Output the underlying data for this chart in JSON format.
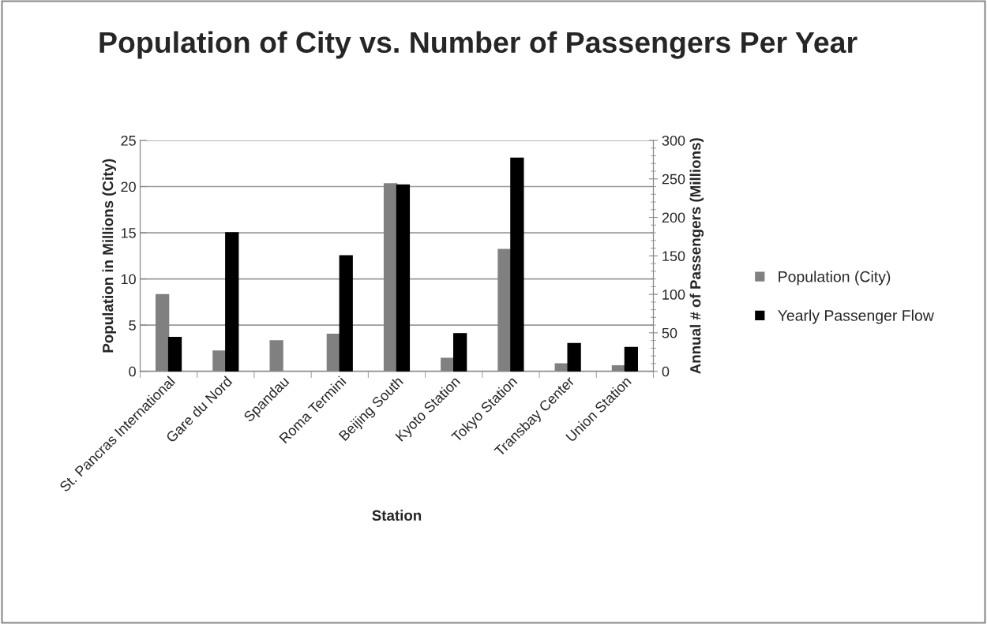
{
  "chart_data": {
    "type": "bar",
    "title": "Population of City vs. Number of Passengers Per Year",
    "xlabel": "Station",
    "ylabel": "Population in Millions (City)",
    "y2label": "Annual # of Passengers (Millions)",
    "categories": [
      "St. Pancras International",
      "Gare du Nord",
      "Spandau",
      "Roma Termini",
      "Beijing South",
      "Kyoto Station",
      "Tokyo Station",
      "Transbay Center",
      "Union Station"
    ],
    "series": [
      {
        "name": "Population (City)",
        "color": "#808080",
        "values": [
          8.3,
          2.2,
          3.3,
          4.0,
          20.3,
          1.4,
          13.2,
          0.8,
          0.6
        ]
      },
      {
        "name": "Yearly Passenger Flow",
        "color": "#000000",
        "axis": "y2",
        "values": [
          44,
          180,
          null,
          150,
          242,
          49,
          277,
          36,
          31
        ]
      }
    ],
    "ylim": [
      0,
      25
    ],
    "yticks": [
      0,
      5,
      10,
      15,
      20,
      25
    ],
    "y2lim": [
      0,
      300
    ],
    "y2ticks": [
      0,
      50,
      100,
      150,
      200,
      250,
      300
    ],
    "grid": "y",
    "legend": "right"
  }
}
